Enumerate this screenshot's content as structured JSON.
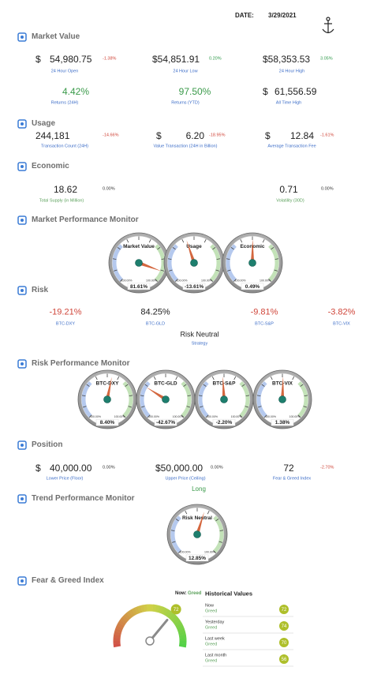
{
  "header": {
    "date_label": "DATE:",
    "date": "3/29/2021"
  },
  "market_value": {
    "title": "Market Value",
    "items": [
      {
        "prefix": "$",
        "value": "54,980.75",
        "change": "-1.38%",
        "label": "24 Hour Open"
      },
      {
        "value": "$54,851.91",
        "change": "0.20%",
        "label": "24 Hour Low"
      },
      {
        "value": "$58,353.53",
        "change": "3.05%",
        "label": "24 Hour High"
      },
      {
        "value": "4.42%",
        "label": "Returns (24H)"
      },
      {
        "value": "97.50%",
        "label": "Returns (YTD)"
      },
      {
        "prefix": "$",
        "value": "61,556.59",
        "label": "All Time High"
      }
    ]
  },
  "usage": {
    "title": "Usage",
    "items": [
      {
        "value": "244,181",
        "change": "-14.66%",
        "label": "Transaction Count (24H)"
      },
      {
        "prefix": "$",
        "value": "6.20",
        "change": "-18.95%",
        "label": "Value Transaction (24H in Billion)"
      },
      {
        "prefix": "$",
        "value": "12.84",
        "change": "-1.61%",
        "label": "Average Transaction Fee"
      }
    ]
  },
  "economic": {
    "title": "Economic",
    "items": [
      {
        "value": "18.62",
        "change": "0.00%",
        "label": "Total Supply (in Million)"
      },
      {
        "value": "0.71",
        "change": "0.00%",
        "label": "Volatility (30D)"
      }
    ]
  },
  "market_monitor": {
    "title": "Market Performance Monitor",
    "gauges": [
      {
        "name": "Market Value",
        "value": 81.61,
        "label": "81.61%"
      },
      {
        "name": "Usage",
        "value": -13.61,
        "label": "-13.61%"
      },
      {
        "name": "Economic",
        "value": 0.49,
        "label": "0.49%"
      }
    ]
  },
  "risk": {
    "title": "Risk",
    "items": [
      {
        "value": "-19.21%",
        "label": "BTC-DXY"
      },
      {
        "value": "84.25%",
        "label": "BTC-GLD"
      },
      {
        "value": "-9.81%",
        "label": "BTC-S&P"
      },
      {
        "value": "-3.82%",
        "label": "BTC-VIX"
      }
    ],
    "strategy": {
      "value": "Risk Neutral",
      "label": "Strategy"
    }
  },
  "risk_monitor": {
    "title": "Risk Performance Monitor",
    "gauges": [
      {
        "name": "BTC-DXY",
        "value": 8.4,
        "label": "8.40%"
      },
      {
        "name": "BTC-GLD",
        "value": -42.67,
        "label": "-42.67%"
      },
      {
        "name": "BTC-S&P",
        "value": -2.2,
        "label": "-2.20%"
      },
      {
        "name": "BTC-VIX",
        "value": 1.38,
        "label": "1.38%"
      }
    ]
  },
  "position": {
    "title": "Position",
    "items": [
      {
        "prefix": "$",
        "value": "40,000.00",
        "change": "0.00%",
        "label": "Lower Price (Floor)"
      },
      {
        "value": "$50,000.00",
        "change": "0.00%",
        "label": "Upper Price (Ceiling)"
      },
      {
        "value": "72",
        "change": "-2.70%",
        "label": "Fear & Greed Index"
      }
    ],
    "direction": "Long"
  },
  "trend_monitor": {
    "title": "Trend Performance Monitor",
    "gauges": [
      {
        "name": "Risk Neutral",
        "value": 12.85,
        "label": "12.85%"
      }
    ]
  },
  "gauge_scale": [
    {
      "value": -100,
      "label": "-100.00%"
    },
    {
      "value": 100,
      "label": "100.00%"
    }
  ],
  "fear_greed": {
    "title": "Fear & Greed Index",
    "scale": [
      0,
      100
    ],
    "now_label": "Now:",
    "now": "Greed",
    "value": 72,
    "history_title": "Historical Values",
    "history": [
      {
        "period": "Now",
        "class": "Greed",
        "value": 72
      },
      {
        "period": "Yesterday",
        "class": "Greed",
        "value": 74
      },
      {
        "period": "Last week",
        "class": "Greed",
        "value": 70
      },
      {
        "period": "Last month",
        "class": "Greed",
        "value": 56
      }
    ]
  }
}
